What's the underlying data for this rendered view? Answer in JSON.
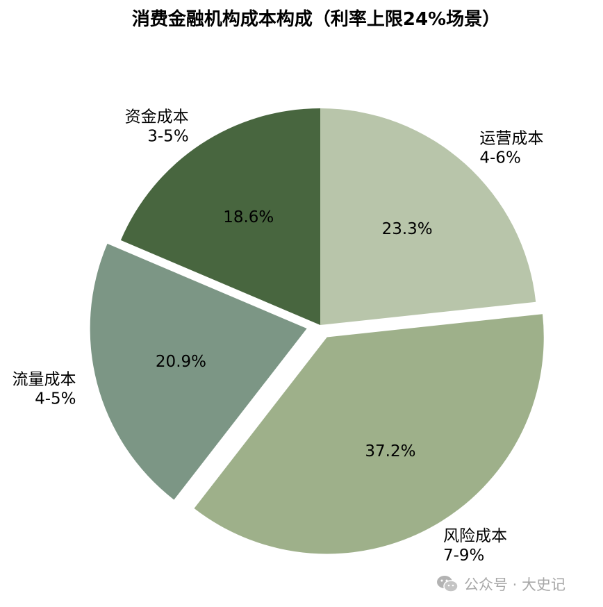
{
  "chart_data": {
    "type": "pie",
    "title": "消费金融机构成本构成（利率上限24%场景）",
    "slices": [
      {
        "name": "资金成本",
        "range": "3-5%",
        "percent_label": "18.6%",
        "value": 18.6,
        "color": "#48663f"
      },
      {
        "name": "流量成本",
        "range": "4-5%",
        "percent_label": "20.9%",
        "value": 20.9,
        "color": "#7c9685"
      },
      {
        "name": "风险成本",
        "range": "7-9%",
        "percent_label": "37.2%",
        "value": 37.2,
        "color": "#9eb08a"
      },
      {
        "name": "运营成本",
        "range": "4-6%",
        "percent_label": "23.3%",
        "value": 23.3,
        "color": "#b8c5aa"
      }
    ],
    "start_angle": "12 o'clock, counter-clockwise",
    "exploded": [
      "流量成本",
      "风险成本"
    ]
  },
  "watermark": {
    "text": "公众号 · 大史记",
    "icon": "wechat-icon"
  }
}
